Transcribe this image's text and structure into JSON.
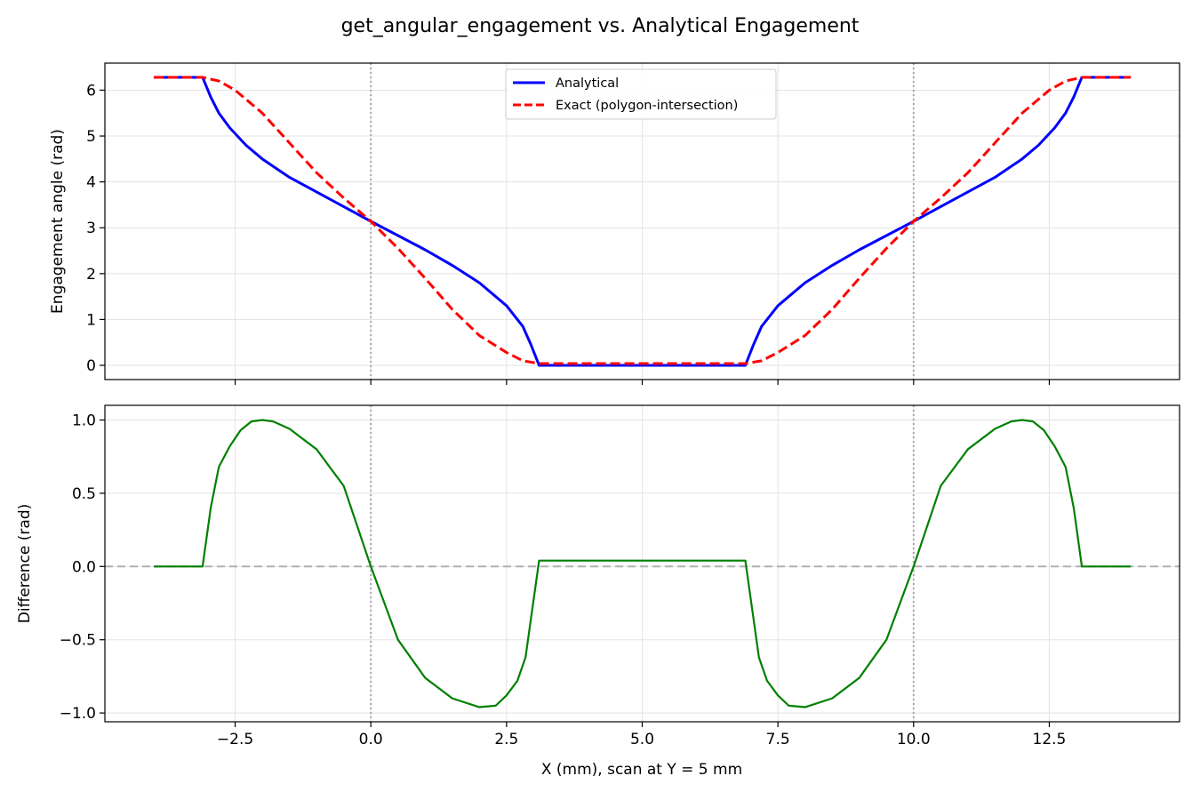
{
  "figure": {
    "title": "get_angular_engagement vs. Analytical Engagement",
    "xlabel": "X (mm), scan at Y = 5 mm",
    "x_ticks": [
      -2.5,
      0.0,
      2.5,
      5.0,
      7.5,
      10.0,
      12.5
    ],
    "x_tick_labels": [
      "−2.5",
      "0.0",
      "2.5",
      "5.0",
      "7.5",
      "10.0",
      "12.5"
    ],
    "xlim": [
      -4.9,
      14.9
    ],
    "vlines_x": [
      0,
      10
    ]
  },
  "chart_data": [
    {
      "type": "line",
      "ylabel": "Engagement angle (rad)",
      "ylim": [
        -0.31,
        6.59
      ],
      "yticks": [
        0,
        1,
        2,
        3,
        4,
        5,
        6
      ],
      "ytick_labels": [
        "0",
        "1",
        "2",
        "3",
        "4",
        "5",
        "6"
      ],
      "grid": true,
      "legend_position": "top-center",
      "series": [
        {
          "name": "Analytical",
          "color": "#0000ff",
          "dash": "solid",
          "points": [
            [
              -4.0,
              6.28
            ],
            [
              -3.1,
              6.28
            ],
            [
              -2.95,
              5.85
            ],
            [
              -2.8,
              5.5
            ],
            [
              -2.6,
              5.18
            ],
            [
              -2.3,
              4.8
            ],
            [
              -2.0,
              4.5
            ],
            [
              -1.5,
              4.1
            ],
            [
              -1.0,
              3.78
            ],
            [
              -0.5,
              3.46
            ],
            [
              0.0,
              3.14
            ],
            [
              0.5,
              2.83
            ],
            [
              1.0,
              2.52
            ],
            [
              1.5,
              2.18
            ],
            [
              2.0,
              1.8
            ],
            [
              2.5,
              1.3
            ],
            [
              2.8,
              0.85
            ],
            [
              2.95,
              0.45
            ],
            [
              3.1,
              0.0
            ],
            [
              6.9,
              0.0
            ],
            [
              7.05,
              0.45
            ],
            [
              7.2,
              0.85
            ],
            [
              7.5,
              1.3
            ],
            [
              8.0,
              1.8
            ],
            [
              8.5,
              2.18
            ],
            [
              9.0,
              2.52
            ],
            [
              9.5,
              2.83
            ],
            [
              10.0,
              3.14
            ],
            [
              10.5,
              3.46
            ],
            [
              11.0,
              3.78
            ],
            [
              11.5,
              4.1
            ],
            [
              12.0,
              4.5
            ],
            [
              12.3,
              4.8
            ],
            [
              12.6,
              5.18
            ],
            [
              12.8,
              5.5
            ],
            [
              12.95,
              5.85
            ],
            [
              13.1,
              6.28
            ],
            [
              14.0,
              6.28
            ]
          ]
        },
        {
          "name": "Exact (polygon-intersection)",
          "color": "#ff0000",
          "dash": "dashed",
          "points": [
            [
              -4.0,
              6.28
            ],
            [
              -3.1,
              6.28
            ],
            [
              -2.8,
              6.2
            ],
            [
              -2.5,
              6.0
            ],
            [
              -2.0,
              5.5
            ],
            [
              -1.5,
              4.85
            ],
            [
              -1.0,
              4.2
            ],
            [
              -0.5,
              3.65
            ],
            [
              0.0,
              3.14
            ],
            [
              0.5,
              2.55
            ],
            [
              1.0,
              1.9
            ],
            [
              1.5,
              1.22
            ],
            [
              2.0,
              0.65
            ],
            [
              2.5,
              0.28
            ],
            [
              2.8,
              0.1
            ],
            [
              3.1,
              0.04
            ],
            [
              6.9,
              0.04
            ],
            [
              7.2,
              0.1
            ],
            [
              7.5,
              0.28
            ],
            [
              8.0,
              0.65
            ],
            [
              8.5,
              1.22
            ],
            [
              9.0,
              1.9
            ],
            [
              9.5,
              2.55
            ],
            [
              10.0,
              3.14
            ],
            [
              10.5,
              3.65
            ],
            [
              11.0,
              4.2
            ],
            [
              11.5,
              4.85
            ],
            [
              12.0,
              5.5
            ],
            [
              12.5,
              6.0
            ],
            [
              12.8,
              6.2
            ],
            [
              13.1,
              6.28
            ],
            [
              14.0,
              6.28
            ]
          ]
        }
      ]
    },
    {
      "type": "line",
      "ylabel": "Difference (rad)",
      "ylim": [
        -1.06,
        1.1
      ],
      "yticks": [
        -1.0,
        -0.5,
        0.0,
        0.5,
        1.0
      ],
      "ytick_labels": [
        "−1.0",
        "−0.5",
        "0.0",
        "0.5",
        "1.0"
      ],
      "grid": true,
      "hline_y": 0,
      "series": [
        {
          "color": "#008000",
          "dash": "solid",
          "points": [
            [
              -4.0,
              0.0
            ],
            [
              -3.1,
              0.0
            ],
            [
              -2.95,
              0.4
            ],
            [
              -2.8,
              0.68
            ],
            [
              -2.6,
              0.82
            ],
            [
              -2.4,
              0.93
            ],
            [
              -2.2,
              0.99
            ],
            [
              -2.0,
              1.0
            ],
            [
              -1.8,
              0.99
            ],
            [
              -1.5,
              0.94
            ],
            [
              -1.0,
              0.8
            ],
            [
              -0.5,
              0.55
            ],
            [
              0.0,
              0.0
            ],
            [
              0.5,
              -0.5
            ],
            [
              1.0,
              -0.76
            ],
            [
              1.5,
              -0.9
            ],
            [
              2.0,
              -0.96
            ],
            [
              2.3,
              -0.95
            ],
            [
              2.5,
              -0.88
            ],
            [
              2.7,
              -0.78
            ],
            [
              2.85,
              -0.62
            ],
            [
              3.1,
              0.04
            ],
            [
              6.9,
              0.04
            ],
            [
              7.15,
              -0.62
            ],
            [
              7.3,
              -0.78
            ],
            [
              7.5,
              -0.88
            ],
            [
              7.7,
              -0.95
            ],
            [
              8.0,
              -0.96
            ],
            [
              8.5,
              -0.9
            ],
            [
              9.0,
              -0.76
            ],
            [
              9.5,
              -0.5
            ],
            [
              10.0,
              0.0
            ],
            [
              10.5,
              0.55
            ],
            [
              11.0,
              0.8
            ],
            [
              11.5,
              0.94
            ],
            [
              11.8,
              0.99
            ],
            [
              12.0,
              1.0
            ],
            [
              12.2,
              0.99
            ],
            [
              12.4,
              0.93
            ],
            [
              12.6,
              0.82
            ],
            [
              12.8,
              0.68
            ],
            [
              12.95,
              0.4
            ],
            [
              13.1,
              0.0
            ],
            [
              14.0,
              0.0
            ]
          ]
        }
      ]
    }
  ]
}
